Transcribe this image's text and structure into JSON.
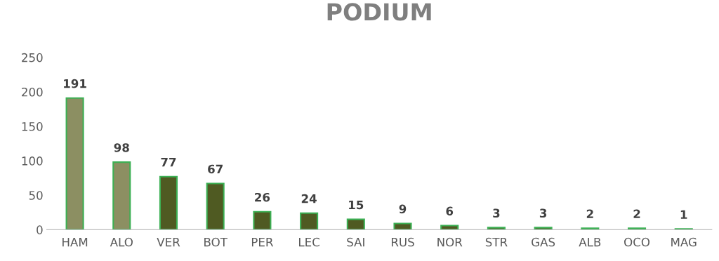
{
  "chart_data": {
    "type": "bar",
    "title": "PODIUM",
    "categories": [
      "HAM",
      "ALO",
      "VER",
      "BOT",
      "PER",
      "LEC",
      "SAI",
      "RUS",
      "NOR",
      "STR",
      "GAS",
      "ALB",
      "OCO",
      "MAG"
    ],
    "values": [
      191,
      98,
      77,
      67,
      26,
      24,
      15,
      9,
      6,
      3,
      3,
      2,
      2,
      1
    ],
    "colors": [
      "#8c8f62",
      "#8c8f62",
      "#4f5a22",
      "#4f5a22",
      "#4f5a22",
      "#4f5a22",
      "#4f5a22",
      "#4f5a22",
      "#4f5a22",
      "#4f5a22",
      "#4f5a22",
      "#4f5a22",
      "#4f5a22",
      "#4f5a22"
    ],
    "ylim": [
      0,
      250
    ],
    "yticks": [
      0,
      50,
      100,
      150,
      200,
      250
    ],
    "grid": false,
    "data_labels": true
  }
}
